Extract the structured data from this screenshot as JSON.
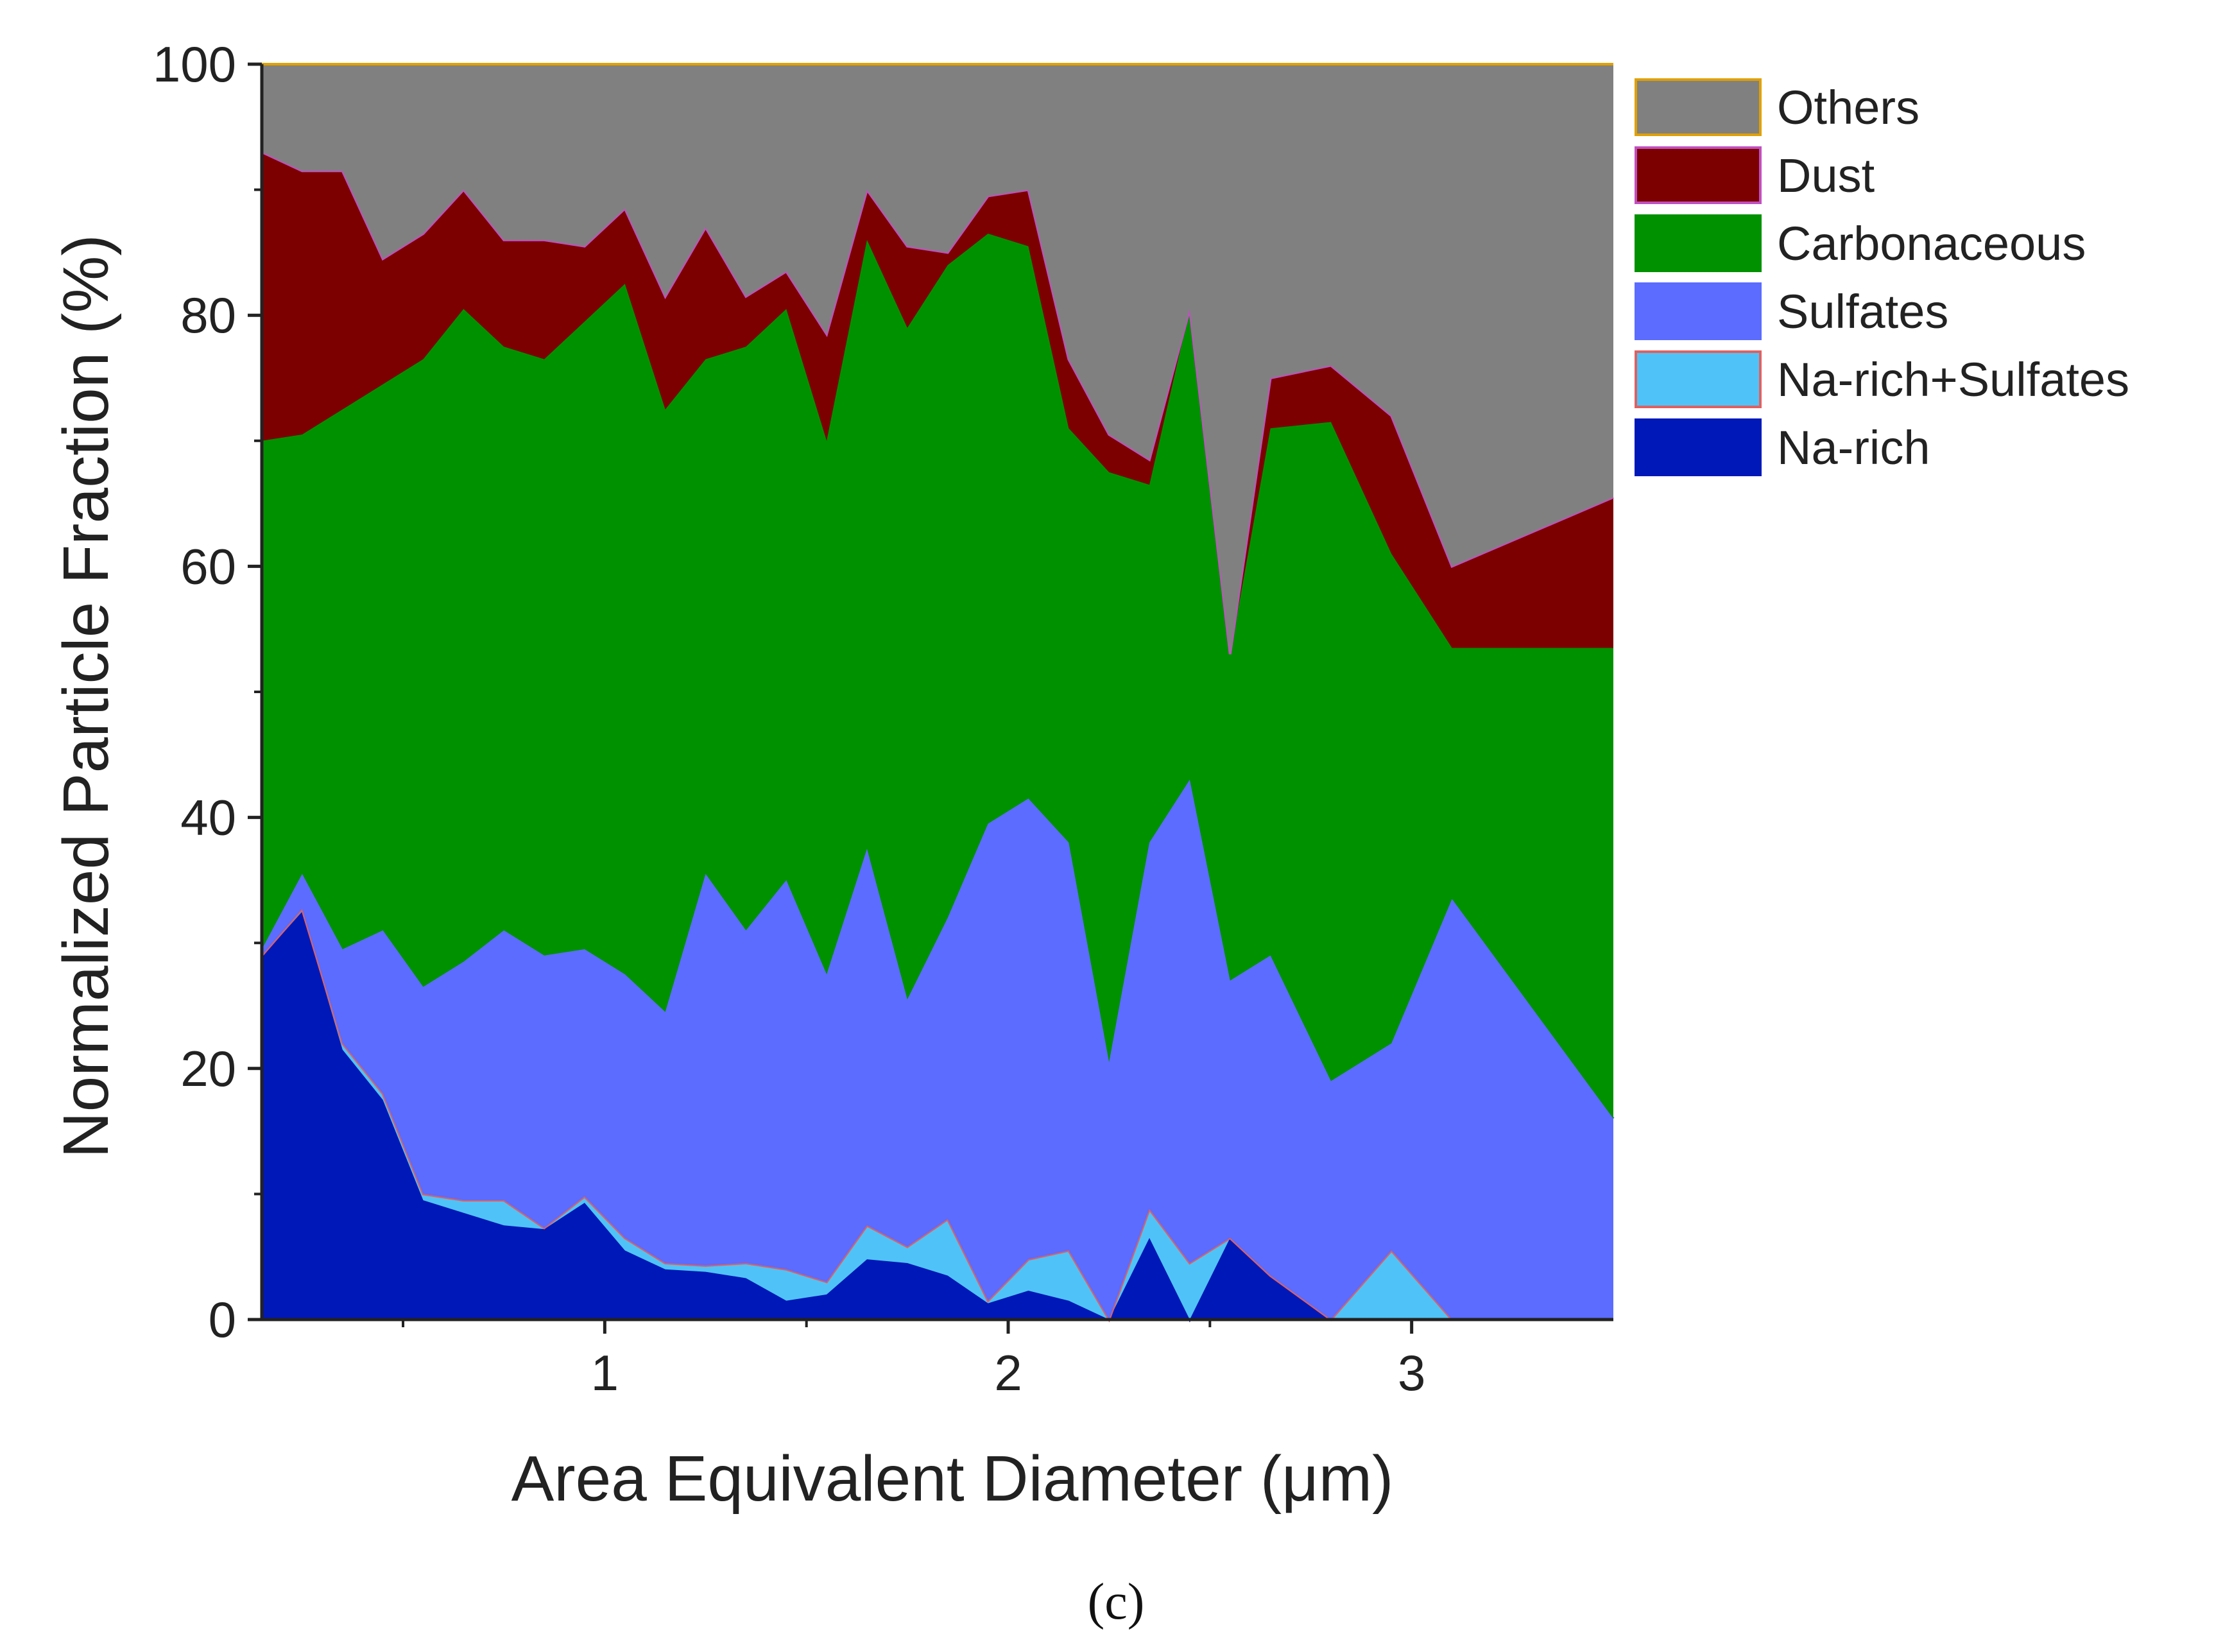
{
  "chart_data": {
    "type": "area",
    "stacked": true,
    "xlabel": "Area Equivalent Diameter (μm)",
    "ylabel": "Normalized Particle Fraction  (%)",
    "xlim": [
      0.15,
      3.5
    ],
    "ylim": [
      0,
      100
    ],
    "x_ticks": [
      1,
      2,
      3
    ],
    "x_tick_labels": [
      "1",
      "2",
      "3"
    ],
    "y_ticks": [
      0,
      20,
      40,
      60,
      80,
      100
    ],
    "y_tick_labels": [
      "0",
      "20",
      "40",
      "60",
      "80",
      "100"
    ],
    "grid": false,
    "legend_position": "top-right",
    "panel_label": "(c)",
    "x": [
      0.15,
      0.25,
      0.35,
      0.45,
      0.55,
      0.65,
      0.75,
      0.85,
      0.95,
      1.05,
      1.15,
      1.25,
      1.35,
      1.45,
      1.55,
      1.65,
      1.75,
      1.85,
      1.95,
      2.05,
      2.15,
      2.25,
      2.35,
      2.45,
      2.55,
      2.65,
      2.8,
      2.95,
      3.1,
      3.5
    ],
    "boundaries": [
      {
        "name": "Na-rich",
        "color": "#0018b8",
        "edge": "#0018b8",
        "values": [
          28.9,
          32.5,
          21.5,
          17.5,
          9.5,
          8.5,
          7.5,
          7.2,
          9.3,
          5.5,
          4.0,
          3.8,
          3.3,
          1.5,
          2.0,
          4.8,
          4.5,
          3.5,
          1.3,
          2.3,
          1.5,
          0.0,
          6.5,
          0.0,
          6.5,
          3.5,
          0.0,
          0.0,
          0.0,
          0.0
        ]
      },
      {
        "name": "Na-rich+Sulfates",
        "color": "#4fc3f7",
        "edge": "#e06060",
        "values": [
          29.0,
          32.7,
          22.0,
          18.0,
          10.0,
          9.5,
          9.5,
          7.3,
          9.8,
          6.5,
          4.5,
          4.3,
          4.5,
          4.0,
          3.0,
          7.5,
          5.8,
          8.0,
          1.5,
          4.8,
          5.5,
          0.0,
          8.8,
          4.5,
          6.5,
          3.5,
          0.0,
          5.5,
          0.0,
          0.0
        ]
      },
      {
        "name": "Sulfates",
        "color": "#5b6cff",
        "edge": "#5b6cff",
        "values": [
          29.5,
          35.5,
          29.5,
          31.0,
          26.5,
          28.5,
          31.0,
          29.0,
          29.5,
          27.5,
          24.5,
          35.5,
          31.0,
          35.0,
          27.5,
          37.5,
          25.5,
          32.0,
          39.5,
          41.5,
          38.0,
          20.5,
          38.0,
          43.0,
          27.0,
          29.0,
          19.0,
          22.0,
          33.5,
          16.0
        ]
      },
      {
        "name": "Carbonaceous",
        "color": "#009100",
        "edge": "#009100",
        "values": [
          70.0,
          70.5,
          72.5,
          74.5,
          76.5,
          80.5,
          77.5,
          76.5,
          79.5,
          82.5,
          72.5,
          76.5,
          77.5,
          80.5,
          70.0,
          86.0,
          79.0,
          84.0,
          86.5,
          85.5,
          71.0,
          67.5,
          66.5,
          80.5,
          53.0,
          71.0,
          71.5,
          61.0,
          53.5,
          53.5
        ]
      },
      {
        "name": "Dust",
        "color": "#7d0000",
        "edge": "#c050c0",
        "values": [
          93.0,
          91.5,
          91.5,
          84.5,
          86.5,
          90.0,
          86.0,
          86.0,
          85.5,
          88.5,
          81.5,
          87.0,
          81.5,
          83.5,
          78.5,
          90.0,
          85.5,
          85.0,
          89.5,
          90.0,
          76.5,
          70.5,
          68.5,
          80.5,
          53.0,
          75.0,
          76.0,
          72.0,
          60.0,
          65.5
        ]
      },
      {
        "name": "Others",
        "color": "#808080",
        "edge": "#e0a000",
        "values": [
          100,
          100,
          100,
          100,
          100,
          100,
          100,
          100,
          100,
          100,
          100,
          100,
          100,
          100,
          100,
          100,
          100,
          100,
          100,
          100,
          100,
          100,
          100,
          100,
          100,
          100,
          100,
          100,
          100,
          100
        ]
      }
    ],
    "legend": [
      {
        "name": "Others",
        "color": "#808080",
        "edge": "#e0a000"
      },
      {
        "name": "Dust",
        "color": "#7d0000",
        "edge": "#c050c0"
      },
      {
        "name": "Carbonaceous",
        "color": "#009100",
        "edge": "#009100"
      },
      {
        "name": "Sulfates",
        "color": "#5b6cff",
        "edge": "#5b6cff"
      },
      {
        "name": "Na-rich+Sulfates",
        "color": "#4fc3f7",
        "edge": "#e06060"
      },
      {
        "name": "Na-rich",
        "color": "#0018b8",
        "edge": "#0018b8"
      }
    ]
  }
}
